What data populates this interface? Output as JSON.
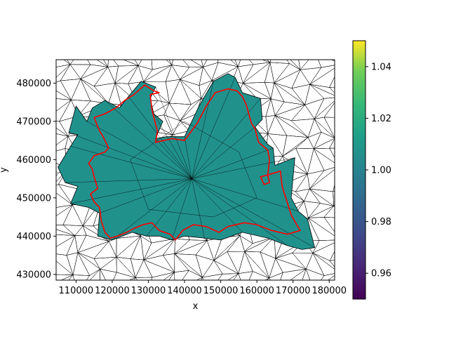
{
  "chart_data": {
    "type": "heatmap",
    "title": "",
    "xlabel": "x",
    "ylabel": "y",
    "xlim": [
      104500,
      181500
    ],
    "ylim": [
      428500,
      889500
    ],
    "x_ticks": [
      110000,
      120000,
      130000,
      140000,
      150000,
      160000,
      170000,
      180000
    ],
    "x_tick_labels": [
      "110000",
      "120000",
      "130000",
      "140000",
      "150000",
      "160000",
      "170000",
      "180000"
    ],
    "y_ticks": [
      430000,
      440000,
      450000,
      460000,
      470000,
      480000
    ],
    "y_tick_labels": [
      "430000",
      "440000",
      "450000",
      "460000",
      "470000",
      "480000"
    ],
    "mesh_color": "#000000",
    "filled_region_value": 1.0,
    "filled_region_color": "#21918c",
    "boundary_color": "#ff0000",
    "filled_region_polygon": [
      [
        113000,
        470000
      ],
      [
        114500,
        473500
      ],
      [
        118000,
        475500
      ],
      [
        122000,
        473500
      ],
      [
        124500,
        476500
      ],
      [
        128000,
        480500
      ],
      [
        132000,
        479000
      ],
      [
        130500,
        476000
      ],
      [
        131500,
        472000
      ],
      [
        134000,
        470000
      ],
      [
        132000,
        465500
      ],
      [
        135000,
        466000
      ],
      [
        140000,
        466000
      ],
      [
        144000,
        474000
      ],
      [
        148000,
        480500
      ],
      [
        152000,
        482500
      ],
      [
        154000,
        481500
      ],
      [
        156000,
        477500
      ],
      [
        161000,
        476000
      ],
      [
        161500,
        470500
      ],
      [
        159500,
        468500
      ],
      [
        163000,
        464000
      ],
      [
        164500,
        463000
      ],
      [
        165000,
        458500
      ],
      [
        170500,
        460500
      ],
      [
        169500,
        450000
      ],
      [
        171500,
        446500
      ],
      [
        174000,
        444500
      ],
      [
        176000,
        437000
      ],
      [
        172500,
        436500
      ],
      [
        168500,
        437500
      ],
      [
        163000,
        439500
      ],
      [
        156000,
        441000
      ],
      [
        150000,
        439000
      ],
      [
        145500,
        439500
      ],
      [
        140000,
        440000
      ],
      [
        136500,
        439000
      ],
      [
        133000,
        440000
      ],
      [
        129500,
        440000
      ],
      [
        125500,
        441000
      ],
      [
        120000,
        439000
      ],
      [
        116000,
        440000
      ],
      [
        116500,
        446000
      ],
      [
        113500,
        447500
      ],
      [
        108500,
        448500
      ],
      [
        110500,
        453000
      ],
      [
        107000,
        454000
      ],
      [
        105000,
        458000
      ],
      [
        108500,
        463500
      ],
      [
        110500,
        466500
      ],
      [
        108000,
        467000
      ],
      [
        110000,
        474000
      ]
    ],
    "boundary_polyline": [
      [
        115000,
        471000
      ],
      [
        118000,
        472000
      ],
      [
        121000,
        473500
      ],
      [
        123500,
        475500
      ],
      [
        126000,
        477000
      ],
      [
        129000,
        479500
      ],
      [
        131500,
        478000
      ],
      [
        133000,
        477500
      ],
      [
        130500,
        477000
      ],
      [
        131000,
        473000
      ],
      [
        132500,
        467500
      ],
      [
        132000,
        464500
      ],
      [
        136500,
        465500
      ],
      [
        140000,
        465000
      ],
      [
        143500,
        469500
      ],
      [
        146000,
        474000
      ],
      [
        148500,
        477500
      ],
      [
        152000,
        478500
      ],
      [
        154500,
        478000
      ],
      [
        156000,
        476500
      ],
      [
        157000,
        474500
      ],
      [
        158500,
        469500
      ],
      [
        159500,
        468000
      ],
      [
        160500,
        464500
      ],
      [
        163000,
        462500
      ],
      [
        163500,
        460000
      ],
      [
        163000,
        456000
      ],
      [
        163500,
        454000
      ],
      [
        162000,
        453500
      ],
      [
        161000,
        455500
      ],
      [
        163000,
        456000
      ],
      [
        166500,
        457000
      ],
      [
        167000,
        453000
      ],
      [
        168500,
        448500
      ],
      [
        169500,
        445500
      ],
      [
        171000,
        443000
      ],
      [
        172000,
        441500
      ],
      [
        168500,
        440500
      ],
      [
        164000,
        441500
      ],
      [
        160000,
        443000
      ],
      [
        156500,
        443500
      ],
      [
        152000,
        442500
      ],
      [
        149500,
        441000
      ],
      [
        146000,
        442500
      ],
      [
        142500,
        443000
      ],
      [
        139500,
        441500
      ],
      [
        137500,
        439000
      ],
      [
        136000,
        440500
      ],
      [
        133000,
        441500
      ],
      [
        131000,
        443500
      ],
      [
        128500,
        443000
      ],
      [
        126000,
        442000
      ],
      [
        124000,
        441000
      ],
      [
        121500,
        440000
      ],
      [
        119500,
        439500
      ],
      [
        118000,
        441000
      ],
      [
        117000,
        444000
      ],
      [
        116500,
        447500
      ],
      [
        115000,
        449000
      ],
      [
        114000,
        451000
      ],
      [
        116000,
        452500
      ],
      [
        115000,
        455500
      ],
      [
        114500,
        457500
      ],
      [
        113500,
        459000
      ],
      [
        115000,
        461000
      ],
      [
        118000,
        462000
      ],
      [
        119000,
        463000
      ],
      [
        117500,
        466000
      ],
      [
        116500,
        467500
      ],
      [
        115000,
        471000
      ]
    ],
    "colorbar": {
      "colormap": "viridis",
      "range": [
        0.95,
        1.05
      ],
      "ticks": [
        0.96,
        0.98,
        1.0,
        1.02,
        1.04
      ],
      "tick_labels": [
        "0.96",
        "0.98",
        "1.00",
        "1.02",
        "1.04"
      ]
    }
  }
}
